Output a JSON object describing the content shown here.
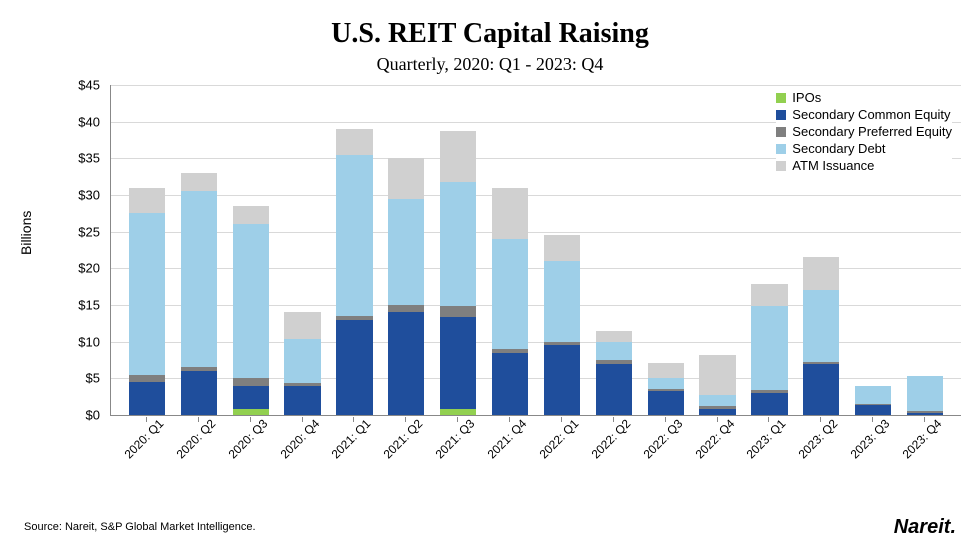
{
  "title": "U.S. REIT Capital Raising",
  "subtitle": "Quarterly, 2020: Q1 - 2023: Q4",
  "y_axis_label": "Billions",
  "source": "Source: Nareit, S&P Global Market Intelligence.",
  "brand": "Nareit",
  "brand_suffix": ".",
  "chart": {
    "type": "stacked-bar",
    "ylim": [
      0,
      45
    ],
    "ytick_step": 5,
    "ytick_prefix": "$",
    "background_color": "#ffffff",
    "grid_color": "#d9d9d9",
    "axis_color": "#888888",
    "bar_width_ratio": 0.7,
    "title_fontsize": 28,
    "subtitle_fontsize": 18,
    "axis_label_fontsize": 14,
    "tick_fontsize": 13,
    "legend_fontsize": 13,
    "series": [
      {
        "key": "ipos",
        "label": "IPOs",
        "color": "#92d050"
      },
      {
        "key": "sec_com",
        "label": "Secondary Common Equity",
        "color": "#1f4e9c"
      },
      {
        "key": "sec_pref",
        "label": "Secondary Preferred Equity",
        "color": "#7f7f7f"
      },
      {
        "key": "sec_debt",
        "label": "Secondary Debt",
        "color": "#9ecfe8"
      },
      {
        "key": "atm",
        "label": "ATM Issuance",
        "color": "#d0d0d0"
      }
    ],
    "categories": [
      "2020: Q1",
      "2020: Q2",
      "2020: Q3",
      "2020: Q4",
      "2021: Q1",
      "2021: Q2",
      "2021: Q3",
      "2021: Q4",
      "2022: Q1",
      "2022: Q2",
      "2022: Q3",
      "2022: Q4",
      "2023: Q1",
      "2023: Q2",
      "2023: Q3",
      "2023: Q4"
    ],
    "data": [
      {
        "ipos": 0.0,
        "sec_com": 4.5,
        "sec_pref": 1.0,
        "sec_debt": 22.0,
        "atm": 3.5
      },
      {
        "ipos": 0.0,
        "sec_com": 6.0,
        "sec_pref": 0.5,
        "sec_debt": 24.0,
        "atm": 2.5
      },
      {
        "ipos": 0.8,
        "sec_com": 3.2,
        "sec_pref": 1.0,
        "sec_debt": 21.0,
        "atm": 2.5
      },
      {
        "ipos": 0.0,
        "sec_com": 4.0,
        "sec_pref": 0.3,
        "sec_debt": 6.0,
        "atm": 3.7
      },
      {
        "ipos": 0.0,
        "sec_com": 13.0,
        "sec_pref": 0.5,
        "sec_debt": 22.0,
        "atm": 3.5
      },
      {
        "ipos": 0.0,
        "sec_com": 14.0,
        "sec_pref": 1.0,
        "sec_debt": 14.5,
        "atm": 5.5
      },
      {
        "ipos": 0.8,
        "sec_com": 12.5,
        "sec_pref": 1.5,
        "sec_debt": 17.0,
        "atm": 7.0
      },
      {
        "ipos": 0.0,
        "sec_com": 8.5,
        "sec_pref": 0.5,
        "sec_debt": 15.0,
        "atm": 7.0
      },
      {
        "ipos": 0.0,
        "sec_com": 9.5,
        "sec_pref": 0.5,
        "sec_debt": 11.0,
        "atm": 3.5
      },
      {
        "ipos": 0.0,
        "sec_com": 7.0,
        "sec_pref": 0.5,
        "sec_debt": 2.5,
        "atm": 1.5
      },
      {
        "ipos": 0.0,
        "sec_com": 3.3,
        "sec_pref": 0.3,
        "sec_debt": 1.5,
        "atm": 2.0
      },
      {
        "ipos": 0.0,
        "sec_com": 0.8,
        "sec_pref": 0.4,
        "sec_debt": 1.5,
        "atm": 5.5
      },
      {
        "ipos": 0.0,
        "sec_com": 3.0,
        "sec_pref": 0.4,
        "sec_debt": 11.5,
        "atm": 3.0
      },
      {
        "ipos": 0.0,
        "sec_com": 7.0,
        "sec_pref": 0.2,
        "sec_debt": 9.8,
        "atm": 4.5
      },
      {
        "ipos": 0.0,
        "sec_com": 1.3,
        "sec_pref": 0.2,
        "sec_debt": 2.5,
        "atm": 0.0
      },
      {
        "ipos": 0.0,
        "sec_com": 0.3,
        "sec_pref": 0.3,
        "sec_debt": 4.7,
        "atm": 0.0
      }
    ]
  }
}
